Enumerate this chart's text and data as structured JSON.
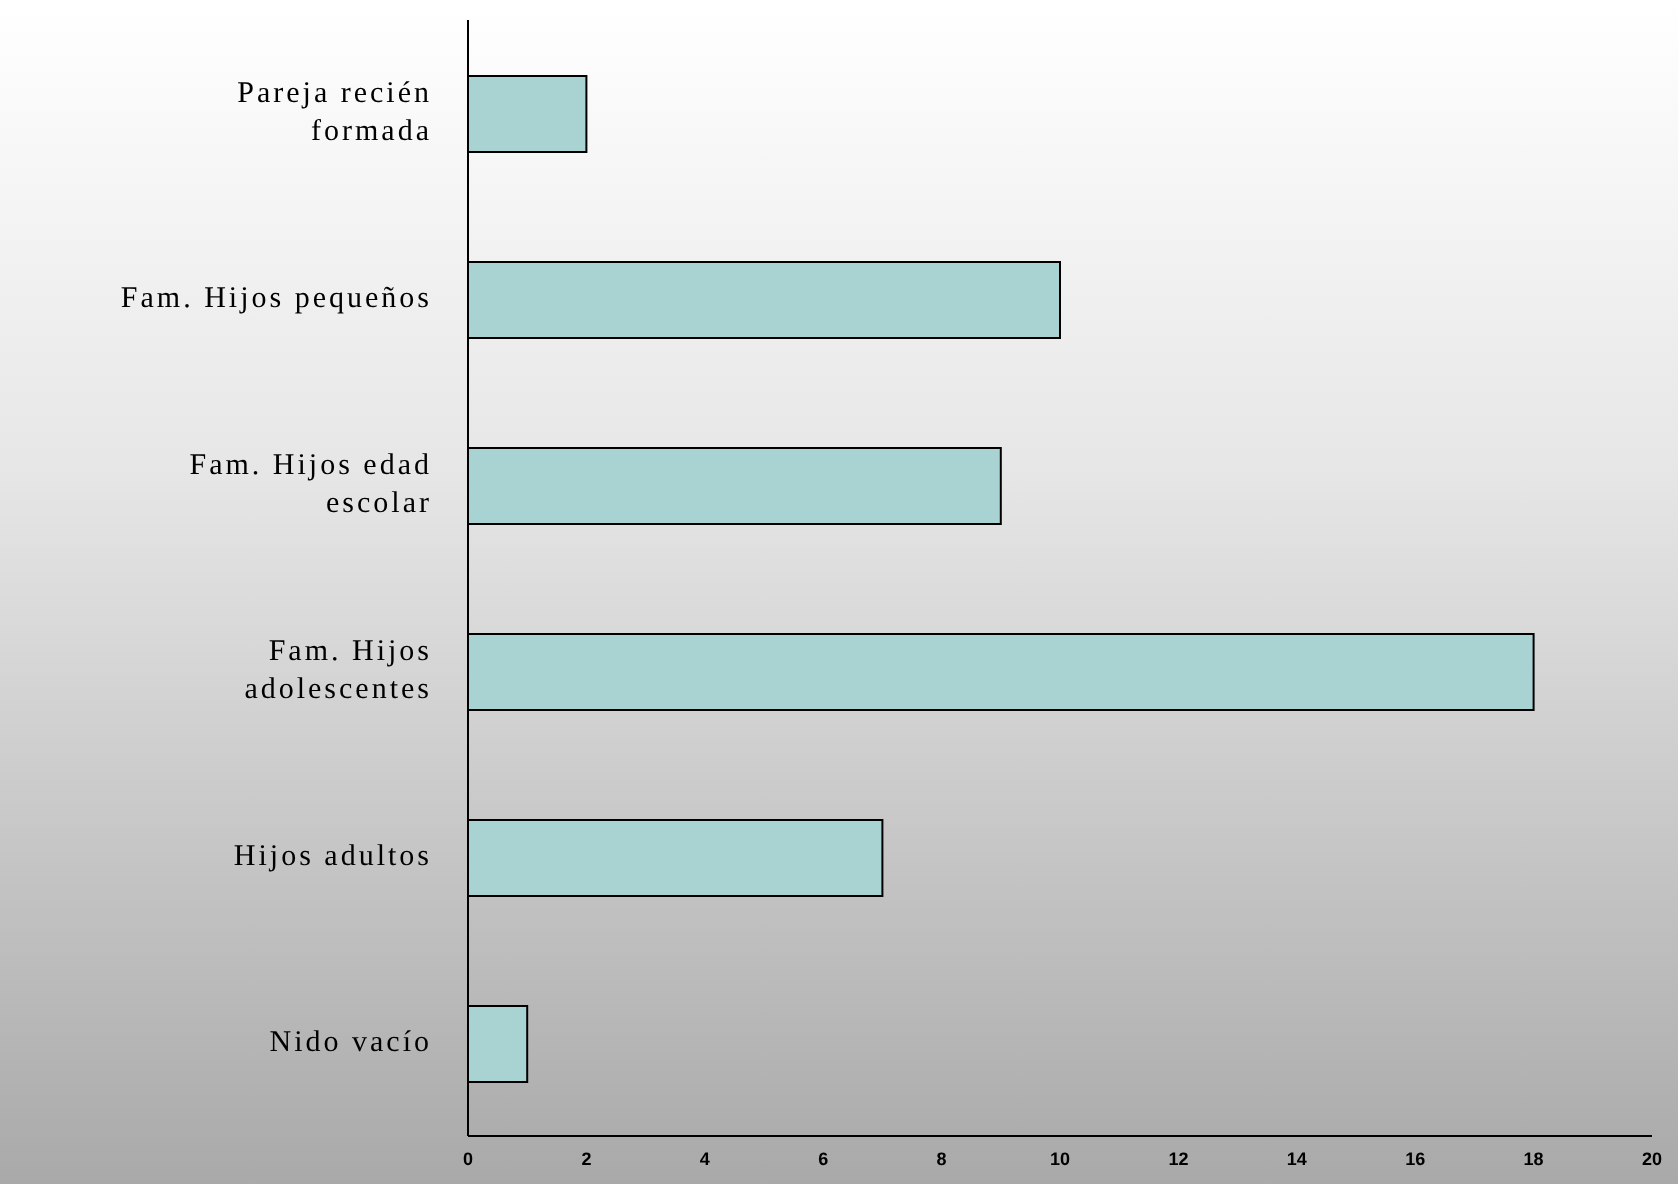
{
  "chart_data": {
    "type": "bar",
    "orientation": "horizontal",
    "categories": [
      "Pareja recién formada",
      "Fam. Hijos pequeños",
      "Fam. Hijos edad escolar",
      "Fam. Hijos adolescentes",
      "Hijos adultos",
      "Nido vacío"
    ],
    "values": [
      2,
      10,
      9,
      18,
      7,
      1
    ],
    "color": "#a9d2d3",
    "xlim": [
      0,
      20
    ],
    "xticks": [
      0,
      2,
      4,
      6,
      8,
      10,
      12,
      14,
      16,
      18,
      20
    ],
    "grid": false,
    "legend": false
  }
}
